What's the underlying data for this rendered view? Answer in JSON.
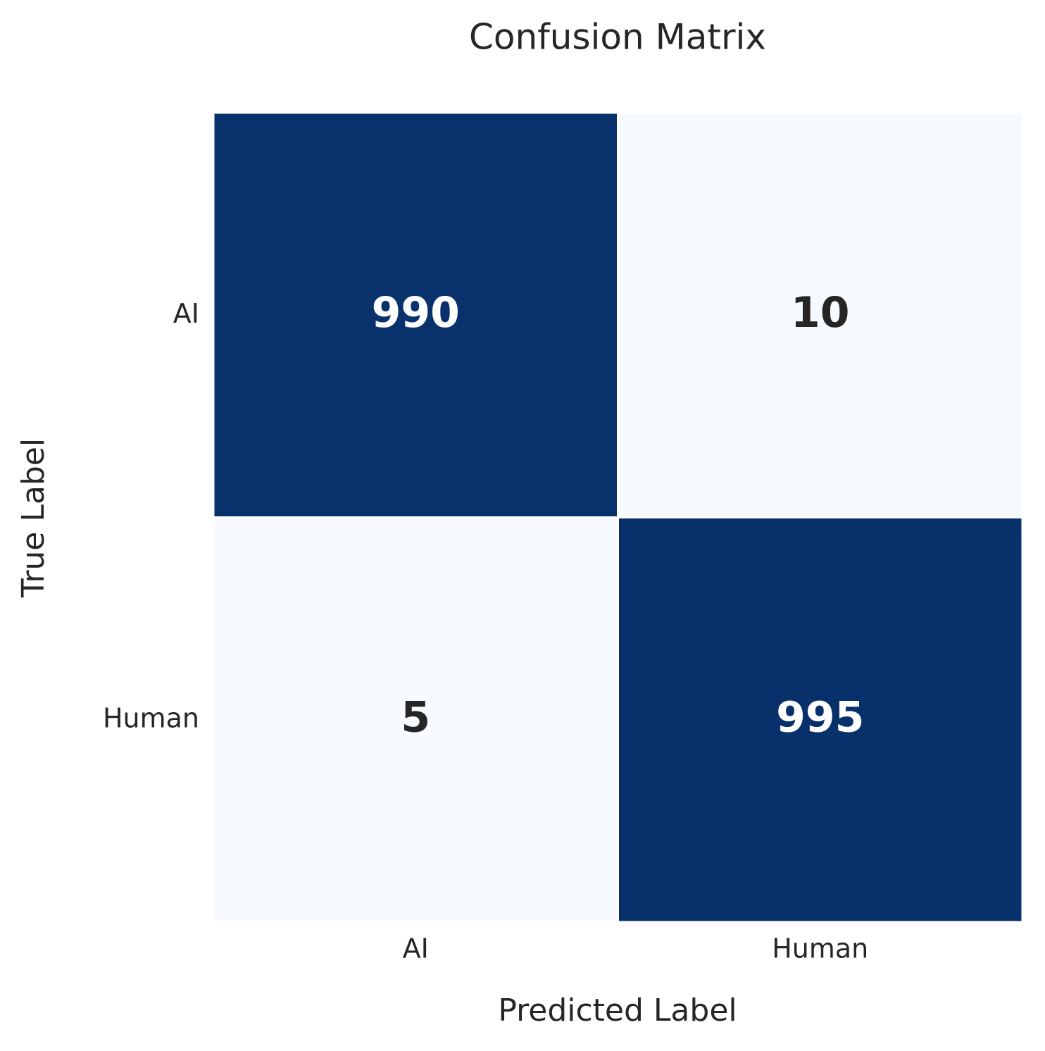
{
  "chart_data": {
    "type": "heatmap",
    "title": "Confusion Matrix",
    "x_label": "Predicted Label",
    "y_label": "True Label",
    "x_categories": [
      "AI",
      "Human"
    ],
    "y_categories": [
      "AI",
      "Human"
    ],
    "values": [
      [
        990,
        10
      ],
      [
        5,
        995
      ]
    ],
    "colors": [
      "#f7fbff",
      "#08306b"
    ]
  }
}
